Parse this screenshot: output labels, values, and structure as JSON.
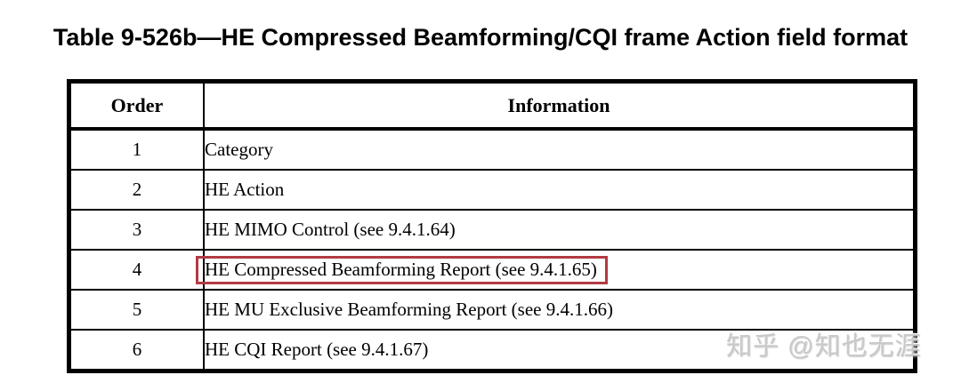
{
  "page": {
    "title": "Table 9-526b—HE Compressed Beamforming/CQI frame Action field format",
    "background_color": "#ffffff",
    "text_color": "#000000"
  },
  "table": {
    "border_color": "#000000",
    "highlight_color": "#b23b43",
    "columns": [
      "Order",
      "Information"
    ],
    "rows": [
      {
        "order": "1",
        "information": "Category",
        "highlighted": false
      },
      {
        "order": "2",
        "information": "HE Action",
        "highlighted": false
      },
      {
        "order": "3",
        "information": "HE MIMO Control (see 9.4.1.64)",
        "highlighted": false
      },
      {
        "order": "4",
        "information": "HE Compressed Beamforming Report (see 9.4.1.65)",
        "highlighted": true
      },
      {
        "order": "5",
        "information": "HE MU Exclusive Beamforming Report (see 9.4.1.66)",
        "highlighted": false
      },
      {
        "order": "6",
        "information": "HE CQI Report (see 9.4.1.67)",
        "highlighted": false
      }
    ]
  },
  "watermark": {
    "text": "知乎 @知也无涯",
    "color": "#c9c9c9"
  }
}
